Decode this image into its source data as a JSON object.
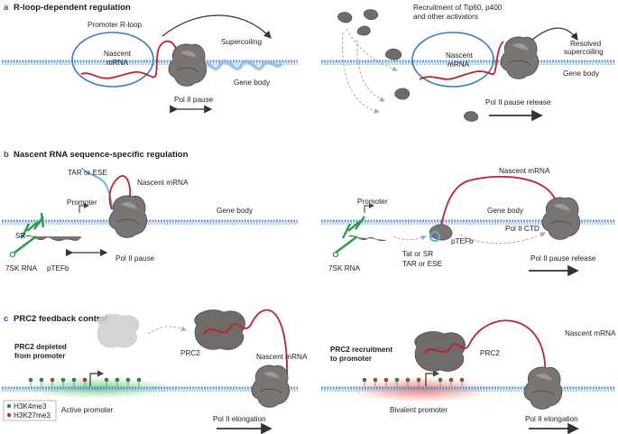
{
  "panel_a": {
    "letter": "a",
    "title": "R-loop-dependent regulation",
    "left": {
      "promoter_rloop": "Promoter R-loop",
      "nascent_mrna_l1": "Nascent",
      "nascent_mrna_l2": "mRNA",
      "supercoiling": "Supercoiling",
      "gene_body": "Gene body",
      "pol_pause": "Pol II pause"
    },
    "right": {
      "recruitment_l1": "Recruitment of Tip60, p400",
      "recruitment_l2": "and other activators",
      "nascent_mrna_l1": "Nascent",
      "nascent_mrna_l2": "mRNA",
      "resolved_l1": "Resolved",
      "resolved_l2": "supercoiling",
      "gene_body": "Gene body",
      "pause_release": "Pol II pause release"
    }
  },
  "panel_b": {
    "letter": "b",
    "title": "Nascent RNA sequence-specific regulation",
    "left": {
      "tar_ese": "TAR or ESE",
      "nascent_mrna": "Nascent mRNA",
      "promoter": "Promoter",
      "gene_body": "Gene body",
      "sr": "SR",
      "rna_7sk": "7SK RNA",
      "ptefb": "pTEFb",
      "pol_pause": "Pol II pause"
    },
    "right": {
      "nascent_mrna": "Nascent mRNA",
      "promoter": "Promoter",
      "gene_body": "Gene body",
      "pol_ctd": "Pol II CTD",
      "ptefb": "pTEFb",
      "tat_sr": "Tat or SR",
      "tar_ese": "TAR or ESE",
      "rna_7sk": "7SK RNA",
      "pause_release": "Pol II pause release"
    }
  },
  "panel_c": {
    "letter": "c",
    "title": "PRC2 feedback control",
    "left": {
      "depleted_l1": "PRC2 depleted",
      "depleted_l2": "from promoter",
      "prc2": "PRC2",
      "nascent_mrna": "Nascent mRNA",
      "active_promoter": "Active promoter",
      "pol_elongation": "Pol II elongation"
    },
    "right": {
      "recruitment_l1": "PRC2 recruitment",
      "recruitment_l2": "to promoter",
      "prc2": "PRC2",
      "nascent_mrna": "Nascent mRNA",
      "bivalent_promoter": "Bivalent promoter",
      "pol_elongation": "Pol II elongation"
    },
    "legend": {
      "h3k4": "H3K4me3",
      "h3k27": "H3K27me3"
    }
  },
  "colors": {
    "dna": "#3a7cc4",
    "rna": "#c0202e",
    "polii": "#6e6a67",
    "sk7": "#2a9a4a",
    "tar": "#5ab0d8",
    "active_glow": "#5cc46a",
    "bivalent_glow": "#e8685a",
    "h3k4": "#2a8a55",
    "h3k27": "#c23a2a",
    "heading": "#1a5c9c"
  }
}
